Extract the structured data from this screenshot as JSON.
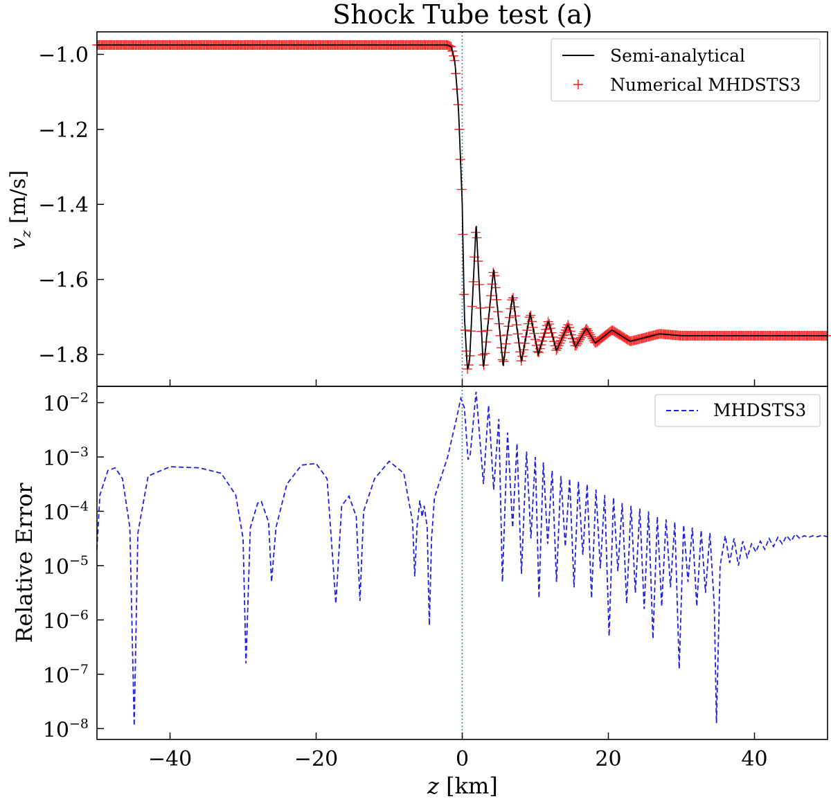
{
  "figure": {
    "title": "Shock Tube test (a)",
    "xlabel": "z [km]"
  },
  "chart_data": [
    {
      "type": "line",
      "panel": "top",
      "ylabel": "v_z [m/s]",
      "ylabel_parts": {
        "var": "v",
        "sub": "z",
        "unit": "[m/s]"
      },
      "xlim": [
        -50,
        50
      ],
      "ylim": [
        -1.885,
        -0.94
      ],
      "xticks": [
        -40,
        -20,
        0,
        20,
        40
      ],
      "yticks": [
        -1.0,
        -1.2,
        -1.4,
        -1.6,
        -1.8
      ],
      "ytick_labels": [
        "−1.0",
        "−1.2",
        "−1.4",
        "−1.6",
        "−1.8"
      ],
      "grid": false,
      "legend_position": "top-right",
      "vline_x": 0,
      "profile": {
        "left_value": -0.975,
        "right_value": -1.75,
        "x": [
          -50,
          -2.0,
          -1.5,
          -1.0,
          -0.5,
          0.0,
          0.3,
          0.7,
          1.0,
          1.9,
          2.9,
          4.3,
          5.6,
          6.9,
          8.1,
          9.3,
          10.4,
          11.8,
          12.9,
          14.5,
          15.5,
          17.0,
          18.2,
          20.5,
          23.0,
          27.0,
          30.0,
          50
        ],
        "y": [
          -0.975,
          -0.975,
          -0.98,
          -1.02,
          -1.15,
          -1.4,
          -1.7,
          -1.84,
          -1.82,
          -1.45,
          -1.84,
          -1.57,
          -1.83,
          -1.64,
          -1.82,
          -1.69,
          -1.8,
          -1.71,
          -1.79,
          -1.72,
          -1.78,
          -1.73,
          -1.77,
          -1.735,
          -1.765,
          -1.745,
          -1.75,
          -1.75
        ]
      },
      "series": [
        {
          "name": "Semi-analytical",
          "style": "solid",
          "color": "#000000"
        },
        {
          "name": "Numerical MHDSTS3",
          "style": "plus-markers",
          "color": "#ff2020"
        }
      ]
    },
    {
      "type": "line",
      "panel": "bottom",
      "ylabel": "Relative Error",
      "yscale": "log",
      "xlim": [
        -50,
        50
      ],
      "ylim_log10": [
        -8.2,
        -1.7
      ],
      "xticks": [
        -40,
        -20,
        0,
        20,
        40
      ],
      "xtick_labels": [
        "−40",
        "−20",
        "0",
        "20",
        "40"
      ],
      "yticks_exponents": [
        -2,
        -3,
        -4,
        -5,
        -6,
        -7,
        -8
      ],
      "ytick_base": "10",
      "grid": false,
      "legend_position": "top-right",
      "vline_x": 0,
      "series": [
        {
          "name": "MHDSTS3",
          "style": "dashed",
          "color": "#1f1fe0",
          "x": [
            -50,
            -49.6,
            -48.5,
            -47.5,
            -46.5,
            -45.5,
            -44.9,
            -44.4,
            -43.0,
            -40.0,
            -36.0,
            -33.0,
            -31.0,
            -30.0,
            -29.6,
            -29.0,
            -28.0,
            -27.5,
            -26.5,
            -26.1,
            -25.5,
            -24.0,
            -22.0,
            -20.0,
            -18.5,
            -17.3,
            -16.5,
            -15.5,
            -14.5,
            -14.0,
            -13.5,
            -12.0,
            -10.0,
            -8.0,
            -6.8,
            -6.5,
            -6.2,
            -5.8,
            -5.5,
            -5.2,
            -4.8,
            -4.5,
            -4.2,
            -3.8,
            -2.0,
            -0.8,
            -0.2,
            0.3,
            0.8,
            1.1,
            1.9,
            2.9,
            3.6,
            4.3,
            5.0,
            5.5,
            6.2,
            6.9,
            7.5,
            8.1,
            8.8,
            9.4,
            10.0,
            10.5,
            11.1,
            11.7,
            12.3,
            12.9,
            13.5,
            14.1,
            14.7,
            15.3,
            15.9,
            16.5,
            17.1,
            17.7,
            18.3,
            18.9,
            19.5,
            20.1,
            20.7,
            21.3,
            21.9,
            22.5,
            23.1,
            23.7,
            24.3,
            24.9,
            25.5,
            26.1,
            26.7,
            27.3,
            27.9,
            28.5,
            29.1,
            29.7,
            30.3,
            30.9,
            31.5,
            32.1,
            32.7,
            33.3,
            33.9,
            34.5,
            34.8,
            35.3,
            36.0,
            36.6,
            37.2,
            37.8,
            38.4,
            39.0,
            39.6,
            40.2,
            40.8,
            41.4,
            42.0,
            42.6,
            43.2,
            43.8,
            44.4,
            45.0,
            45.6,
            46.2,
            46.8,
            47.4,
            48.0,
            48.6,
            49.2,
            50
          ],
          "y_log10": [
            -4.7,
            -3.7,
            -3.25,
            -3.2,
            -3.4,
            -4.3,
            -7.95,
            -4.4,
            -3.35,
            -3.18,
            -3.2,
            -3.3,
            -3.7,
            -4.5,
            -6.8,
            -4.3,
            -3.85,
            -3.82,
            -4.2,
            -5.3,
            -4.3,
            -3.5,
            -3.15,
            -3.12,
            -3.4,
            -5.7,
            -3.9,
            -3.72,
            -4.1,
            -5.65,
            -4.0,
            -3.4,
            -3.08,
            -3.3,
            -4.2,
            -5.2,
            -4.3,
            -3.8,
            -4.1,
            -3.9,
            -4.3,
            -6.1,
            -4.5,
            -3.75,
            -3.0,
            -2.3,
            -1.92,
            -2.1,
            -3.05,
            -2.95,
            -1.8,
            -3.5,
            -2.05,
            -3.6,
            -2.3,
            -5.3,
            -2.55,
            -4.3,
            -2.75,
            -5.15,
            -2.9,
            -4.5,
            -3.0,
            -5.6,
            -3.1,
            -4.6,
            -3.25,
            -5.3,
            -3.35,
            -4.65,
            -3.4,
            -5.4,
            -3.45,
            -4.8,
            -3.5,
            -5.6,
            -3.6,
            -5.05,
            -3.7,
            -6.3,
            -3.75,
            -5.1,
            -3.85,
            -5.7,
            -3.9,
            -5.5,
            -3.95,
            -5.8,
            -4.0,
            -6.35,
            -4.1,
            -5.75,
            -4.15,
            -5.4,
            -4.2,
            -6.9,
            -4.25,
            -5.3,
            -4.3,
            -5.75,
            -4.35,
            -5.5,
            -4.4,
            -5.75,
            -7.9,
            -5.0,
            -4.45,
            -4.95,
            -4.5,
            -5.0,
            -4.55,
            -4.85,
            -4.6,
            -4.75,
            -4.55,
            -4.7,
            -4.5,
            -4.65,
            -4.48,
            -4.6,
            -4.45,
            -4.55,
            -4.42,
            -4.5,
            -4.45,
            -4.48,
            -4.45,
            -4.47,
            -4.44,
            -4.47
          ]
        }
      ]
    }
  ]
}
